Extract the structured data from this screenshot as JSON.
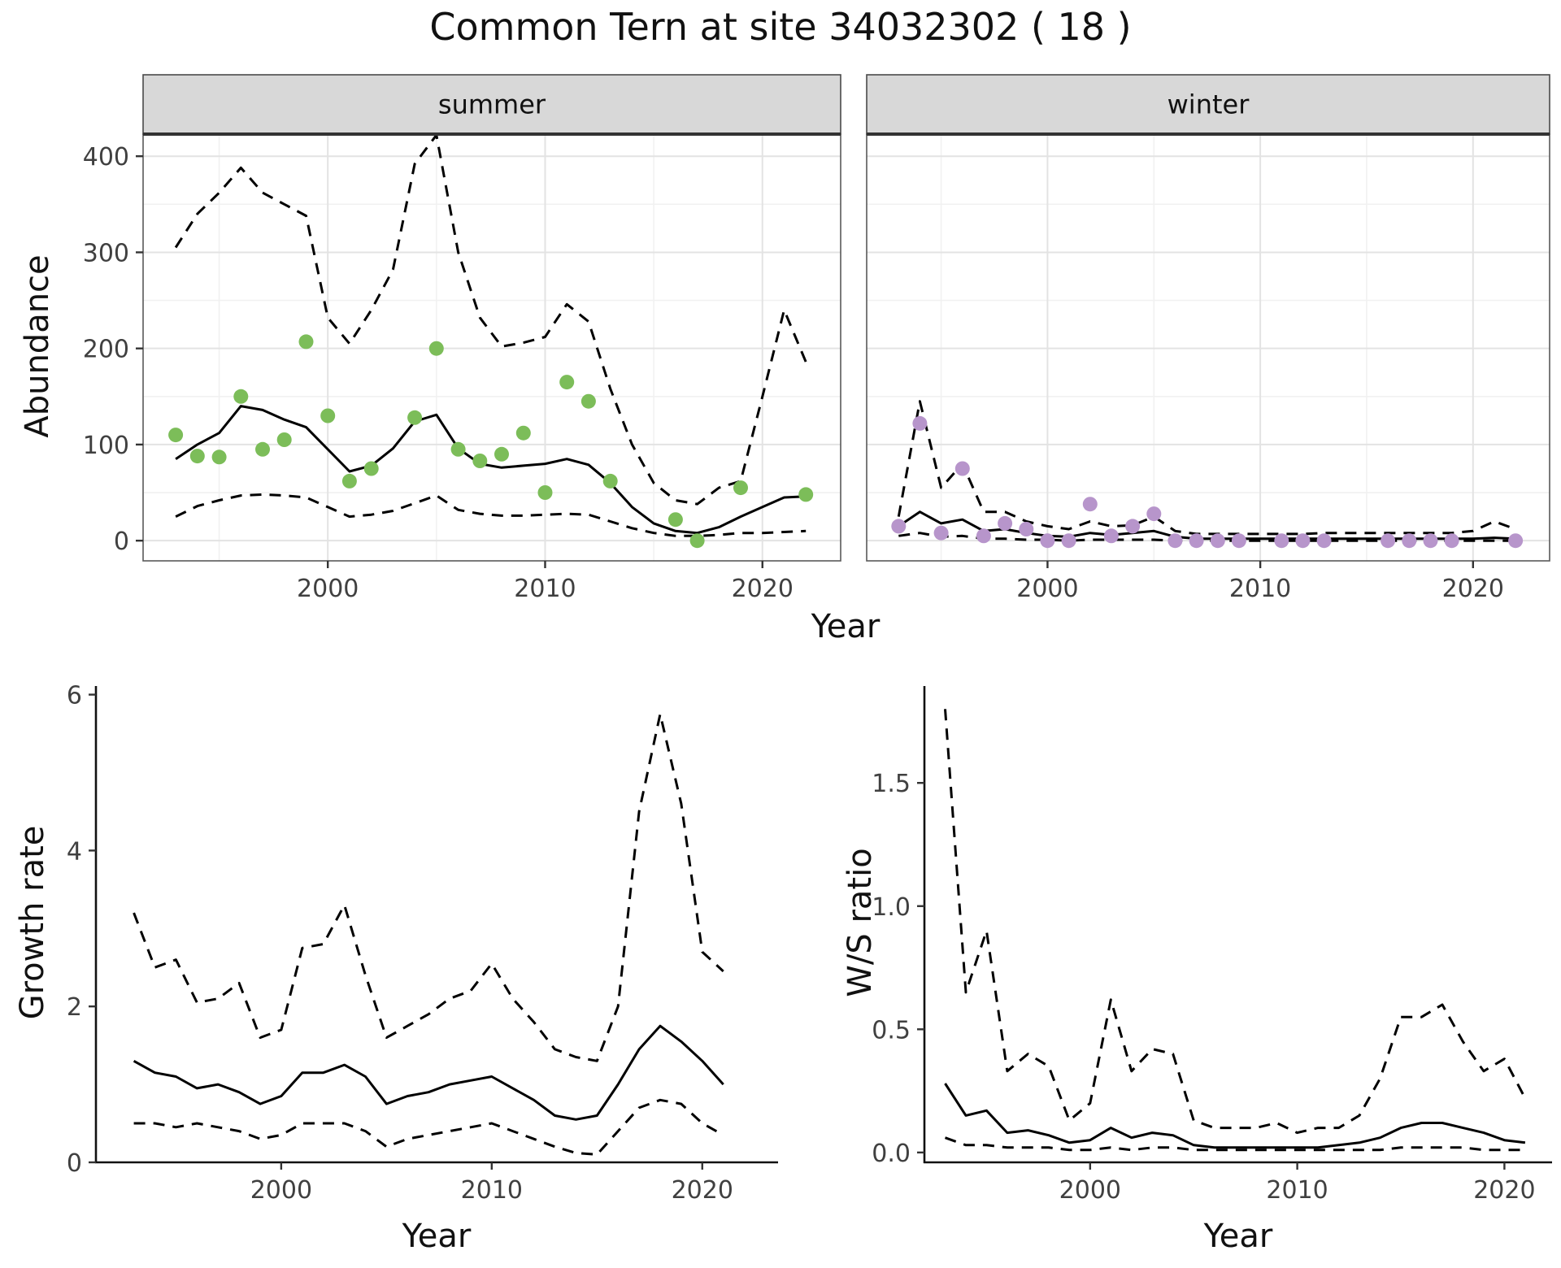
{
  "title": "Common Tern at site 34032302 ( 18 )",
  "colors": {
    "summer_point": "#7cbd59",
    "winter_point": "#b795cb",
    "line": "#000000",
    "strip_bg": "#d8d8d8",
    "grid_major": "#e3e3e3",
    "grid_minor": "#f1f1f1"
  },
  "chart_data": [
    {
      "id": "abundance_summer",
      "type": "line",
      "facet_label": "summer",
      "xlabel": "Year",
      "ylabel": "Abundance",
      "xlim": [
        1991.5,
        2023.6
      ],
      "ylim": [
        -21,
        423
      ],
      "xticks": [
        2000,
        2010,
        2020
      ],
      "xtick_labels": [
        "2000",
        "2010",
        "2020"
      ],
      "xticks_minor": [
        1995,
        2005,
        2015
      ],
      "yticks": [
        0,
        100,
        200,
        300,
        400
      ],
      "ytick_labels": [
        "0",
        "100",
        "200",
        "300",
        "400"
      ],
      "yticks_minor": [
        50,
        150,
        250,
        350
      ],
      "series": [
        {
          "name": "fit",
          "style": "solid",
          "x": [
            1993,
            1994,
            1995,
            1996,
            1997,
            1998,
            1999,
            2000,
            2001,
            2002,
            2003,
            2004,
            2005,
            2006,
            2007,
            2008,
            2009,
            2010,
            2011,
            2012,
            2013,
            2014,
            2015,
            2016,
            2017,
            2018,
            2019,
            2020,
            2021,
            2022
          ],
          "y": [
            85,
            100,
            112,
            140,
            136,
            126,
            118,
            95,
            72,
            78,
            96,
            124,
            131,
            96,
            80,
            76,
            78,
            80,
            85,
            79,
            60,
            35,
            18,
            10,
            8,
            14,
            25,
            35,
            45,
            46
          ]
        },
        {
          "name": "upper_ci",
          "style": "dashed",
          "x": [
            1993,
            1994,
            1995,
            1996,
            1997,
            1998,
            1999,
            2000,
            2001,
            2002,
            2003,
            2004,
            2005,
            2006,
            2007,
            2008,
            2009,
            2010,
            2011,
            2012,
            2013,
            2014,
            2015,
            2016,
            2017,
            2018,
            2019,
            2020,
            2021,
            2022
          ],
          "y": [
            305,
            340,
            362,
            388,
            362,
            350,
            338,
            232,
            205,
            240,
            282,
            392,
            422,
            300,
            232,
            202,
            206,
            212,
            246,
            228,
            158,
            100,
            60,
            42,
            38,
            55,
            62,
            150,
            240,
            186
          ]
        },
        {
          "name": "lower_ci",
          "style": "dashed",
          "x": [
            1993,
            1994,
            1995,
            1996,
            1997,
            1998,
            1999,
            2000,
            2001,
            2002,
            2003,
            2004,
            2005,
            2006,
            2007,
            2008,
            2009,
            2010,
            2011,
            2012,
            2013,
            2014,
            2015,
            2016,
            2017,
            2018,
            2019,
            2020,
            2021,
            2022
          ],
          "y": [
            25,
            36,
            42,
            47,
            48,
            47,
            45,
            35,
            25,
            27,
            31,
            39,
            47,
            32,
            28,
            26,
            26,
            27,
            28,
            27,
            20,
            13,
            8,
            5,
            5,
            6,
            8,
            8,
            9,
            10
          ]
        }
      ],
      "points": {
        "color": "#7cbd59",
        "x": [
          1993,
          1994,
          1995,
          1996,
          1997,
          1998,
          1999,
          2000,
          2001,
          2002,
          2004,
          2005,
          2006,
          2007,
          2008,
          2009,
          2010,
          2011,
          2012,
          2013,
          2016,
          2017,
          2019,
          2022
        ],
        "y": [
          110,
          88,
          87,
          150,
          95,
          105,
          207,
          130,
          62,
          75,
          128,
          200,
          95,
          83,
          90,
          112,
          50,
          165,
          145,
          62,
          22,
          0,
          55,
          48
        ]
      }
    },
    {
      "id": "abundance_winter",
      "type": "line",
      "facet_label": "winter",
      "xlabel": "Year",
      "ylabel": "Abundance",
      "xlim": [
        1991.5,
        2023.6
      ],
      "ylim": [
        -21,
        423
      ],
      "xticks": [
        2000,
        2010,
        2020
      ],
      "xtick_labels": [
        "2000",
        "2010",
        "2020"
      ],
      "xticks_minor": [
        1995,
        2005,
        2015
      ],
      "yticks": [
        0,
        100,
        200,
        300,
        400
      ],
      "ytick_labels": [
        "0",
        "100",
        "200",
        "300",
        "400"
      ],
      "yticks_minor": [
        50,
        150,
        250,
        350
      ],
      "series": [
        {
          "name": "fit",
          "style": "solid",
          "x": [
            1993,
            1994,
            1995,
            1996,
            1997,
            1998,
            1999,
            2000,
            2001,
            2002,
            2003,
            2004,
            2005,
            2006,
            2007,
            2008,
            2009,
            2010,
            2011,
            2012,
            2013,
            2014,
            2015,
            2016,
            2017,
            2018,
            2019,
            2020,
            2021,
            2022
          ],
          "y": [
            15,
            30,
            18,
            22,
            10,
            12,
            8,
            5,
            4,
            8,
            6,
            8,
            10,
            4,
            2,
            2,
            2,
            2,
            2,
            2,
            2,
            2,
            2,
            2,
            2,
            2,
            2,
            2,
            3,
            2
          ]
        },
        {
          "name": "upper_ci",
          "style": "dashed",
          "x": [
            1993,
            1994,
            1995,
            1996,
            1997,
            1998,
            1999,
            2000,
            2001,
            2002,
            2003,
            2004,
            2005,
            2006,
            2007,
            2008,
            2009,
            2010,
            2011,
            2012,
            2013,
            2014,
            2015,
            2016,
            2017,
            2018,
            2019,
            2020,
            2021,
            2022
          ],
          "y": [
            25,
            145,
            55,
            80,
            30,
            30,
            20,
            15,
            12,
            20,
            15,
            16,
            25,
            10,
            7,
            7,
            7,
            7,
            7,
            7,
            8,
            8,
            8,
            8,
            8,
            8,
            8,
            10,
            20,
            12
          ]
        },
        {
          "name": "lower_ci",
          "style": "dashed",
          "x": [
            1993,
            1994,
            1995,
            1996,
            1997,
            1998,
            1999,
            2000,
            2001,
            2002,
            2003,
            2004,
            2005,
            2006,
            2007,
            2008,
            2009,
            2010,
            2011,
            2012,
            2013,
            2014,
            2015,
            2016,
            2017,
            2018,
            2019,
            2020,
            2021,
            2022
          ],
          "y": [
            5,
            8,
            4,
            5,
            2,
            2,
            1,
            1,
            0,
            1,
            1,
            1,
            1,
            0,
            0,
            0,
            0,
            0,
            0,
            0,
            0,
            0,
            0,
            0,
            0,
            0,
            0,
            0,
            0,
            0
          ]
        }
      ],
      "points": {
        "color": "#b795cb",
        "x": [
          1993,
          1994,
          1995,
          1996,
          1997,
          1998,
          1999,
          2000,
          2001,
          2002,
          2003,
          2004,
          2005,
          2006,
          2007,
          2008,
          2009,
          2011,
          2012,
          2013,
          2016,
          2017,
          2018,
          2019,
          2022
        ],
        "y": [
          15,
          122,
          8,
          75,
          5,
          18,
          12,
          0,
          0,
          38,
          5,
          15,
          28,
          0,
          0,
          0,
          0,
          0,
          0,
          0,
          0,
          0,
          0,
          0,
          0
        ]
      }
    },
    {
      "id": "growth_rate",
      "type": "line",
      "xlabel": "Year",
      "ylabel": "Growth rate",
      "xlim": [
        1991.2,
        2023.6
      ],
      "ylim": [
        0,
        6.1
      ],
      "xticks": [
        2000,
        2010,
        2020
      ],
      "xtick_labels": [
        "2000",
        "2010",
        "2020"
      ],
      "yticks": [
        0,
        2,
        4,
        6
      ],
      "ytick_labels": [
        "0",
        "2",
        "4",
        "6"
      ],
      "series": [
        {
          "name": "fit",
          "style": "solid",
          "x": [
            1993,
            1994,
            1995,
            1996,
            1997,
            1998,
            1999,
            2000,
            2001,
            2002,
            2003,
            2004,
            2005,
            2006,
            2007,
            2008,
            2009,
            2010,
            2011,
            2012,
            2013,
            2014,
            2015,
            2016,
            2017,
            2018,
            2019,
            2020,
            2021
          ],
          "y": [
            1.3,
            1.15,
            1.1,
            0.95,
            1.0,
            0.9,
            0.75,
            0.85,
            1.15,
            1.15,
            1.25,
            1.1,
            0.75,
            0.85,
            0.9,
            1.0,
            1.05,
            1.1,
            0.95,
            0.8,
            0.6,
            0.55,
            0.6,
            1.0,
            1.45,
            1.75,
            1.55,
            1.3,
            1.0
          ]
        },
        {
          "name": "upper_ci",
          "style": "dashed",
          "x": [
            1993,
            1994,
            1995,
            1996,
            1997,
            1998,
            1999,
            2000,
            2001,
            2002,
            2003,
            2004,
            2005,
            2006,
            2007,
            2008,
            2009,
            2010,
            2011,
            2012,
            2013,
            2014,
            2015,
            2016,
            2017,
            2018,
            2019,
            2020,
            2021
          ],
          "y": [
            3.2,
            2.5,
            2.6,
            2.05,
            2.1,
            2.3,
            1.6,
            1.7,
            2.75,
            2.8,
            3.3,
            2.4,
            1.6,
            1.75,
            1.9,
            2.1,
            2.2,
            2.55,
            2.1,
            1.8,
            1.45,
            1.35,
            1.3,
            2.0,
            4.5,
            5.75,
            4.6,
            2.7,
            2.45
          ]
        },
        {
          "name": "lower_ci",
          "style": "dashed",
          "x": [
            1993,
            1994,
            1995,
            1996,
            1997,
            1998,
            1999,
            2000,
            2001,
            2002,
            2003,
            2004,
            2005,
            2006,
            2007,
            2008,
            2009,
            2010,
            2011,
            2012,
            2013,
            2014,
            2015,
            2016,
            2017,
            2018,
            2019,
            2020,
            2021
          ],
          "y": [
            0.5,
            0.5,
            0.45,
            0.5,
            0.45,
            0.4,
            0.3,
            0.35,
            0.5,
            0.5,
            0.5,
            0.4,
            0.2,
            0.3,
            0.35,
            0.4,
            0.45,
            0.5,
            0.4,
            0.3,
            0.2,
            0.12,
            0.1,
            0.4,
            0.7,
            0.8,
            0.75,
            0.5,
            0.35
          ]
        }
      ]
    },
    {
      "id": "ws_ratio",
      "type": "line",
      "xlabel": "Year",
      "ylabel": "W/S ratio",
      "xlim": [
        1992.0,
        2022.3
      ],
      "ylim": [
        -0.04,
        1.89
      ],
      "xticks": [
        2000,
        2010,
        2020
      ],
      "xtick_labels": [
        "2000",
        "2010",
        "2020"
      ],
      "yticks": [
        0,
        0.5,
        1,
        1.5
      ],
      "ytick_labels": [
        "0.0",
        "0.5",
        "1.0",
        "1.5"
      ],
      "series": [
        {
          "name": "fit",
          "style": "solid",
          "x": [
            1993,
            1994,
            1995,
            1996,
            1997,
            1998,
            1999,
            2000,
            2001,
            2002,
            2003,
            2004,
            2005,
            2006,
            2007,
            2008,
            2009,
            2010,
            2011,
            2012,
            2013,
            2014,
            2015,
            2016,
            2017,
            2018,
            2019,
            2020,
            2021
          ],
          "y": [
            0.28,
            0.15,
            0.17,
            0.08,
            0.09,
            0.07,
            0.04,
            0.05,
            0.1,
            0.06,
            0.08,
            0.07,
            0.03,
            0.02,
            0.02,
            0.02,
            0.02,
            0.02,
            0.02,
            0.03,
            0.04,
            0.06,
            0.1,
            0.12,
            0.12,
            0.1,
            0.08,
            0.05,
            0.04
          ]
        },
        {
          "name": "upper_ci",
          "style": "dashed",
          "x": [
            1993,
            1994,
            1995,
            1996,
            1997,
            1998,
            1999,
            2000,
            2001,
            2002,
            2003,
            2004,
            2005,
            2006,
            2007,
            2008,
            2009,
            2010,
            2011,
            2012,
            2013,
            2014,
            2015,
            2016,
            2017,
            2018,
            2019,
            2020,
            2021
          ],
          "y": [
            1.8,
            0.65,
            0.9,
            0.33,
            0.4,
            0.35,
            0.13,
            0.2,
            0.62,
            0.33,
            0.42,
            0.4,
            0.13,
            0.1,
            0.1,
            0.1,
            0.12,
            0.08,
            0.1,
            0.1,
            0.15,
            0.3,
            0.55,
            0.55,
            0.6,
            0.45,
            0.33,
            0.38,
            0.22
          ]
        },
        {
          "name": "lower_ci",
          "style": "dashed",
          "x": [
            1993,
            1994,
            1995,
            1996,
            1997,
            1998,
            1999,
            2000,
            2001,
            2002,
            2003,
            2004,
            2005,
            2006,
            2007,
            2008,
            2009,
            2010,
            2011,
            2012,
            2013,
            2014,
            2015,
            2016,
            2017,
            2018,
            2019,
            2020,
            2021
          ],
          "y": [
            0.06,
            0.03,
            0.03,
            0.02,
            0.02,
            0.02,
            0.01,
            0.01,
            0.02,
            0.01,
            0.02,
            0.02,
            0.01,
            0.01,
            0.01,
            0.01,
            0.01,
            0.01,
            0.01,
            0.01,
            0.01,
            0.01,
            0.02,
            0.02,
            0.02,
            0.02,
            0.01,
            0.01,
            0.01
          ]
        }
      ]
    }
  ]
}
